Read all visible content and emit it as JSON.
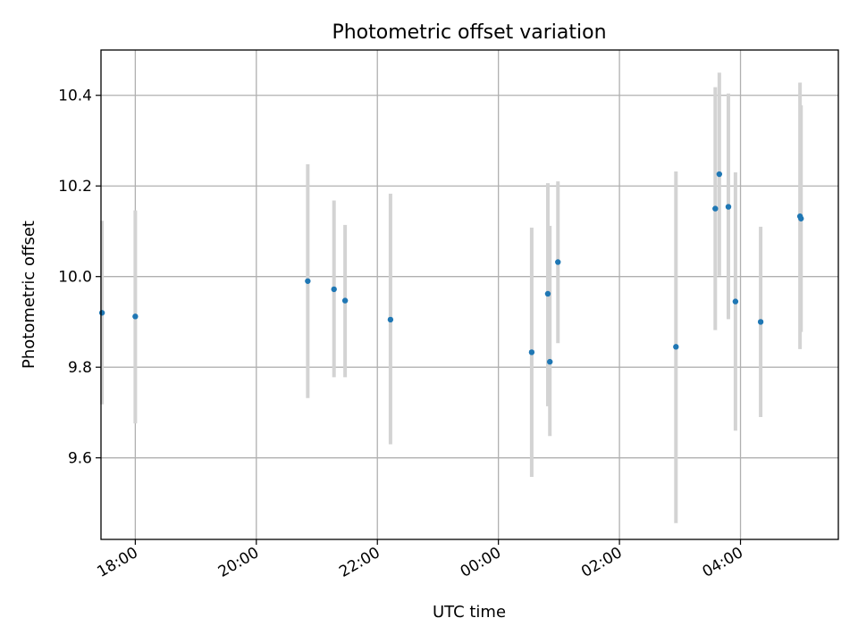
{
  "chart_data": {
    "type": "scatter",
    "title": "Photometric offset variation",
    "xlabel": "UTC time",
    "ylabel": "Photometric offset",
    "x_axis_type": "time",
    "x_range": [
      "17:26",
      "05:37"
    ],
    "ylim": [
      9.42,
      10.5
    ],
    "xticks": [
      "18:00",
      "20:00",
      "22:00",
      "00:00",
      "02:00",
      "04:00"
    ],
    "yticks": [
      9.6,
      9.8,
      10.0,
      10.2,
      10.4
    ],
    "grid": true,
    "colors": {
      "marker": "#1f77b4",
      "errorbar": "#d3d3d3"
    },
    "points": [
      {
        "x": "17:27",
        "y": 9.92,
        "ylow": 9.718,
        "yhigh": 10.123
      },
      {
        "x": "18:00",
        "y": 9.912,
        "ylow": 9.676,
        "yhigh": 10.146
      },
      {
        "x": "20:51",
        "y": 9.99,
        "ylow": 9.732,
        "yhigh": 10.248
      },
      {
        "x": "21:17",
        "y": 9.972,
        "ylow": 9.778,
        "yhigh": 10.168
      },
      {
        "x": "21:28",
        "y": 9.947,
        "ylow": 9.778,
        "yhigh": 10.114
      },
      {
        "x": "22:13",
        "y": 9.905,
        "ylow": 9.63,
        "yhigh": 10.183
      },
      {
        "x": "00:33",
        "y": 9.833,
        "ylow": 9.558,
        "yhigh": 10.108
      },
      {
        "x": "00:49",
        "y": 9.962,
        "ylow": 9.714,
        "yhigh": 10.206
      },
      {
        "x": "00:51",
        "y": 9.812,
        "ylow": 9.648,
        "yhigh": 10.112
      },
      {
        "x": "00:59",
        "y": 10.032,
        "ylow": 9.853,
        "yhigh": 10.21
      },
      {
        "x": "02:56",
        "y": 9.845,
        "ylow": 9.456,
        "yhigh": 10.232
      },
      {
        "x": "03:35",
        "y": 10.15,
        "ylow": 9.882,
        "yhigh": 10.418
      },
      {
        "x": "03:39",
        "y": 10.226,
        "ylow": 10.002,
        "yhigh": 10.45
      },
      {
        "x": "03:48",
        "y": 10.154,
        "ylow": 9.906,
        "yhigh": 10.404
      },
      {
        "x": "03:55",
        "y": 9.945,
        "ylow": 9.66,
        "yhigh": 10.23
      },
      {
        "x": "04:20",
        "y": 9.9,
        "ylow": 9.69,
        "yhigh": 10.11
      },
      {
        "x": "04:59",
        "y": 10.133,
        "ylow": 9.84,
        "yhigh": 10.428
      },
      {
        "x": "05:00",
        "y": 10.128,
        "ylow": 9.878,
        "yhigh": 10.378
      }
    ]
  }
}
